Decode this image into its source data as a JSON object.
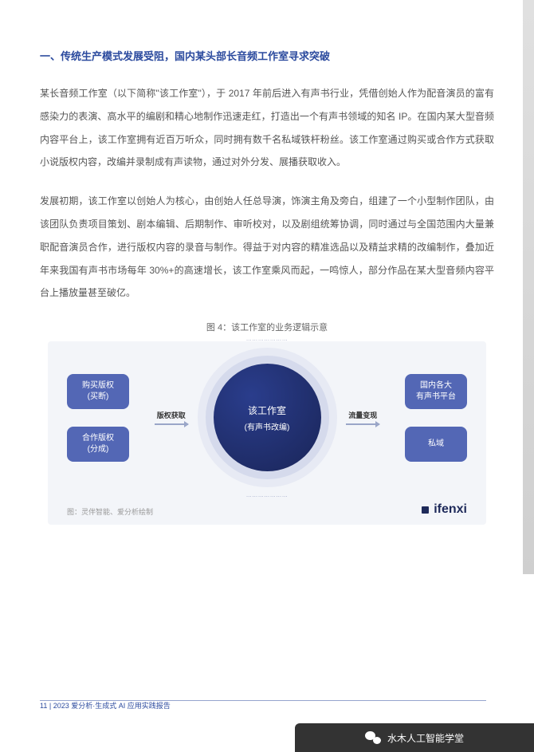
{
  "section": {
    "title": "一、传统生产模式发展受阻，国内某头部长音频工作室寻求突破"
  },
  "paragraphs": {
    "p1": "某长音频工作室（以下简称\"该工作室\"），于 2017 年前后进入有声书行业，凭借创始人作为配音演员的富有感染力的表演、高水平的编剧和精心地制作迅速走红，打造出一个有声书领域的知名 IP。在国内某大型音频内容平台上，该工作室拥有近百万听众，同时拥有数千名私域铁杆粉丝。该工作室通过购买或合作方式获取小说版权内容，改编并录制成有声读物，通过对外分发、展播获取收入。",
    "p2": "发展初期，该工作室以创始人为核心，由创始人任总导演，饰演主角及旁白，组建了一个小型制作团队，由该团队负责项目策划、剧本编辑、后期制作、审听校对，以及剧组统筹协调，同时通过与全国范围内大量兼职配音演员合作，进行版权内容的录音与制作。得益于对内容的精准选品以及精益求精的改编制作，叠加近年来我国有声书市场每年 30%+的高速增长，该工作室乘风而起，一鸣惊人，部分作品在某大型音频内容平台上播放量甚至破亿。"
  },
  "figure": {
    "caption": "图 4：该工作室的业务逻辑示意",
    "type": "flowchart",
    "background_color": "#f3f5f9",
    "node_color": "#5367b5",
    "center_color_from": "#2a3d8c",
    "center_color_to": "#1a2558",
    "left_nodes": [
      {
        "l1": "购买版权",
        "l2": "(买断)"
      },
      {
        "l1": "合作版权",
        "l2": "(分成)"
      }
    ],
    "right_nodes": [
      {
        "l1": "国内各大",
        "l2": "有声书平台"
      },
      {
        "l1": "私域",
        "l2": ""
      }
    ],
    "center": {
      "l1": "该工作室",
      "l2": "(有声书改编)"
    },
    "connectors": {
      "left": "版权获取",
      "right": "流量变现"
    },
    "ellipsis": "…………………",
    "source": "图：灵伴智能、爱分析绘制",
    "brand": "ifenxi"
  },
  "footer": {
    "page_num": "11",
    "divider": " | ",
    "report_name": "2023 爱分析·生成式 AI 应用实践报告"
  },
  "wechat": {
    "name": "水木人工智能学堂"
  },
  "colors": {
    "accent_blue": "#2b4a9e",
    "text_body": "#555555",
    "node_bg": "#5367b5",
    "diagram_bg": "#f3f5f9"
  }
}
